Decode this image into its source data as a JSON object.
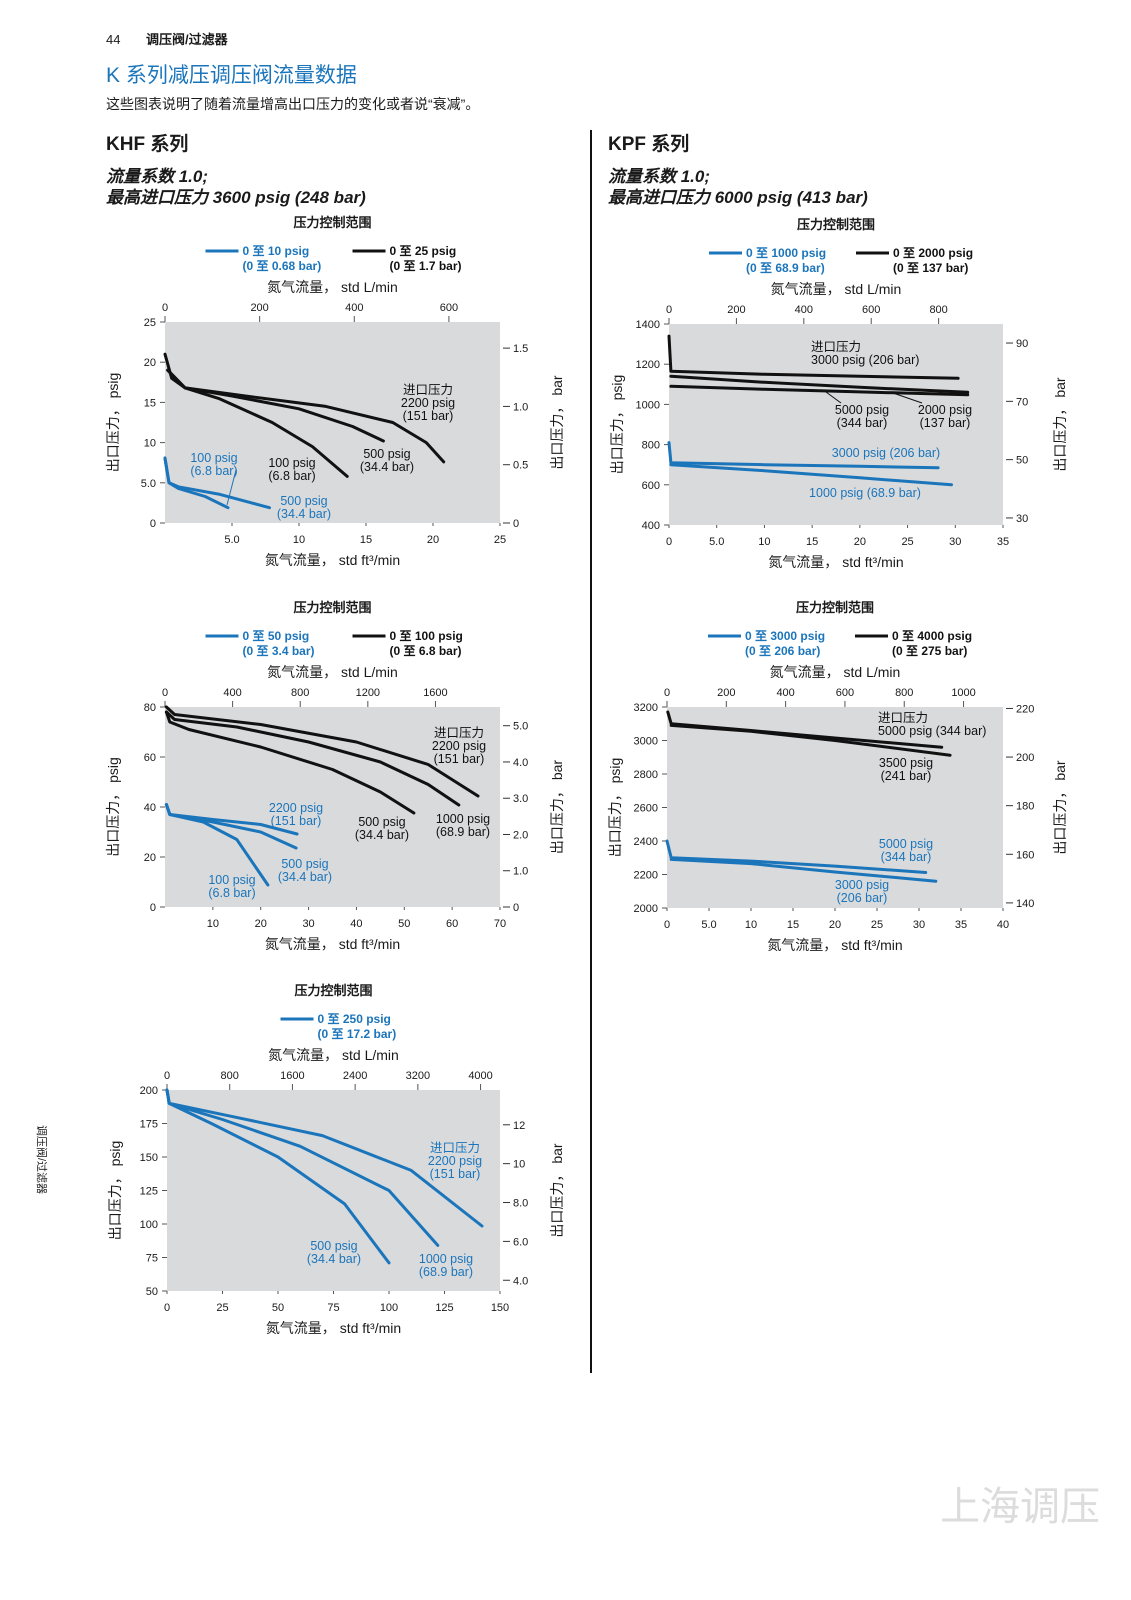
{
  "header": {
    "page": "44",
    "section": "调压阀/过滤器"
  },
  "title": "K 系列减压调压阀流量数据",
  "intro": "这些图表说明了随着流量增高出口压力的变化或者说“衰减”。",
  "side_tab": "调压阀/过滤器",
  "watermark": "上海调压",
  "columns": [
    {
      "heading": "KHF 系列",
      "spec": [
        "流量系数 1.0;",
        "最高进口压力 3600 psig (248 bar)"
      ]
    },
    {
      "heading": "KPF 系列",
      "spec": [
        "流量系数 1.0;",
        "最高进口压力 6000 psig (413 bar)"
      ]
    }
  ],
  "chart_data": [
    {
      "type": "line",
      "title": "压力控制范围",
      "legend": [
        {
          "name": "0 至 10 psig",
          "name_bar": "(0 至 0.68 bar)",
          "color": "#1b75bb"
        },
        {
          "name": "0 至 25 psig",
          "name_bar": "(0 至 1.7 bar)",
          "color": "#111111"
        }
      ],
      "x2label": "氮气流量， std L/min",
      "xlabel": "氮气流量， std ft³/min",
      "ylabel": "出口压力， psig",
      "y2label": "出口压力， bar",
      "xlim": [
        0,
        25
      ],
      "xticks": [
        {
          "value": 5,
          "label": "5.0"
        },
        10,
        15,
        20,
        25
      ],
      "x2lim": [
        0,
        708
      ],
      "x2ticks": [
        0,
        200,
        400,
        600
      ],
      "ylim": [
        0,
        25
      ],
      "yticks": [
        0,
        {
          "value": 5,
          "label": "5.0"
        },
        10,
        15,
        20,
        25
      ],
      "y2lim": [
        0,
        1.724
      ],
      "y2ticks": [
        0,
        0.5,
        {
          "value": 1,
          "label": "1.0"
        },
        1.5
      ],
      "series": [
        {
          "label": [
            "100 psig",
            "(6.8 bar)"
          ],
          "color": "#1b75bb",
          "x": [
            0,
            0.3,
            1,
            3,
            4.7
          ],
          "values": [
            8.1,
            5,
            4.3,
            3.3,
            1.9
          ]
        },
        {
          "label": [
            "500 psig",
            "(34.4 bar)"
          ],
          "color": "#1b75bb",
          "x": [
            0,
            0.3,
            1,
            4,
            7.8
          ],
          "values": [
            8,
            5,
            4.5,
            3.6,
            1.9
          ]
        },
        {
          "label": [
            "100 psig",
            "(6.8 bar)"
          ],
          "color": "#111111",
          "x": [
            0,
            0.5,
            1.5,
            4,
            8,
            11,
            13.6
          ],
          "values": [
            21,
            18,
            16.8,
            15.5,
            12.5,
            9.5,
            5.8
          ]
        },
        {
          "label": [
            "500 psig",
            "(34.4 bar)"
          ],
          "color": "#111111",
          "x": [
            0.2,
            1.5,
            5,
            10,
            14,
            16.3
          ],
          "values": [
            19,
            16.8,
            15.8,
            14.2,
            12,
            10.2
          ]
        },
        {
          "label": [
            "进口压力",
            "2200 psig",
            "(151 bar)"
          ],
          "color": "#111111",
          "x": [
            0.2,
            1.5,
            6,
            12,
            17,
            19.5,
            20.8
          ],
          "values": [
            19,
            16.8,
            15.8,
            14.5,
            12.5,
            10,
            7.6
          ]
        }
      ]
    },
    {
      "type": "line",
      "title": "压力控制范围",
      "legend": [
        {
          "name": "0 至 50 psig",
          "name_bar": "(0 至 3.4 bar)",
          "color": "#1b75bb"
        },
        {
          "name": "0 至 100 psig",
          "name_bar": "(0 至 6.8 bar)",
          "color": "#111111"
        }
      ],
      "x2label": "氮气流量， std L/min",
      "xlabel": "氮气流量， std ft³/min",
      "ylabel": "出口压力， psig",
      "y2label": "出口压力， bar",
      "xlim": [
        0,
        70
      ],
      "xticks": [
        10,
        20,
        30,
        40,
        50,
        60,
        70
      ],
      "x2lim": [
        0,
        1982
      ],
      "x2ticks": [
        0,
        400,
        800,
        1200,
        1600
      ],
      "ylim": [
        0,
        80
      ],
      "yticks": [
        0,
        20,
        40,
        60,
        80
      ],
      "y2lim": [
        0,
        5.516
      ],
      "y2ticks": [
        0,
        {
          "value": 1,
          "label": "1.0"
        },
        {
          "value": 2,
          "label": "2.0"
        },
        {
          "value": 3,
          "label": "3.0"
        },
        {
          "value": 4,
          "label": "4.0"
        },
        {
          "value": 5,
          "label": "5.0"
        }
      ],
      "series": [
        {
          "label": [
            "2200 psig",
            "(151 bar)"
          ],
          "color": "#1b75bb",
          "x": [
            0.3,
            1,
            10,
            20,
            27.6
          ],
          "values": [
            41,
            37,
            35,
            33,
            29.2
          ]
        },
        {
          "label": [
            "500 psig",
            "(34.4 bar)"
          ],
          "color": "#1b75bb",
          "x": [
            0.3,
            1,
            10,
            20,
            27.4
          ],
          "values": [
            41,
            37,
            34,
            30,
            23.6
          ]
        },
        {
          "label": [
            "100 psig",
            "(6.8 bar)"
          ],
          "color": "#1b75bb",
          "x": [
            0.3,
            1,
            8,
            15,
            21.5
          ],
          "values": [
            41,
            37,
            34,
            27,
            8.8
          ]
        },
        {
          "label": [
            "500 psig",
            "(34.4 bar)"
          ],
          "color": "#111111",
          "x": [
            0.3,
            1,
            5,
            20,
            35,
            45,
            52
          ],
          "values": [
            78,
            74,
            71,
            64,
            55,
            46,
            37.6
          ]
        },
        {
          "label": [
            "1000 psig",
            "(68.9 bar)"
          ],
          "color": "#111111",
          "x": [
            0.3,
            2,
            15,
            30,
            45,
            55,
            61.4
          ],
          "values": [
            78,
            75,
            72,
            66,
            58,
            49,
            40.8
          ]
        },
        {
          "label": [
            "进口压力",
            "2200 psig",
            "(151 bar)"
          ],
          "color": "#111111",
          "x": [
            0.3,
            2,
            20,
            40,
            55,
            65.4
          ],
          "values": [
            80,
            77,
            73,
            66,
            57,
            44.4
          ]
        }
      ]
    },
    {
      "type": "line",
      "title": "压力控制范围",
      "legend": [
        {
          "name": "0 至 250 psig",
          "name_bar": "(0 至 17.2 bar)",
          "color": "#1b75bb"
        }
      ],
      "x2label": "氮气流量， std L/min",
      "xlabel": "氮气流量， std ft³/min",
      "ylabel": "出口压力， psig",
      "y2label": "出口压力， bar",
      "xlim": [
        0,
        150
      ],
      "xticks": [
        0,
        25,
        50,
        75,
        100,
        125,
        150
      ],
      "x2lim": [
        0,
        4248
      ],
      "x2ticks": [
        0,
        800,
        1600,
        2400,
        3200,
        4000
      ],
      "ylim": [
        50,
        200
      ],
      "yticks": [
        50,
        75,
        100,
        125,
        150,
        175,
        200
      ],
      "y2lim": [
        3.447,
        13.79
      ],
      "y2ticks": [
        {
          "value": 4,
          "label": "4.0"
        },
        {
          "value": 6,
          "label": "6.0"
        },
        {
          "value": 8,
          "label": "8.0"
        },
        10,
        12
      ],
      "series": [
        {
          "label": [
            "500 psig",
            "(34.4 bar)"
          ],
          "color": "#1b75bb",
          "x": [
            0,
            1,
            20,
            50,
            80,
            100
          ],
          "values": [
            200,
            190,
            175,
            150,
            115,
            71
          ]
        },
        {
          "label": [
            "1000 psig",
            "(68.9 bar)"
          ],
          "color": "#1b75bb",
          "x": [
            0,
            1,
            25,
            60,
            100,
            122
          ],
          "values": [
            200,
            190,
            178,
            158,
            125,
            84
          ]
        },
        {
          "label": [
            "进口压力",
            "2200 psig",
            "(151 bar)"
          ],
          "color": "#1b75bb",
          "x": [
            0,
            1,
            30,
            70,
            110,
            141.9
          ],
          "values": [
            200,
            190,
            180,
            166,
            140,
            98.5
          ]
        }
      ]
    },
    {
      "type": "line",
      "title": "压力控制范围",
      "legend": [
        {
          "name": "0 至 1000 psig",
          "name_bar": "(0 至 68.9 bar)",
          "color": "#1b75bb"
        },
        {
          "name": "0 至 2000 psig",
          "name_bar": "(0 至 137 bar)",
          "color": "#111111"
        }
      ],
      "x2label": "氮气流量， std L/min",
      "xlabel": "氮气流量， std ft³/min",
      "ylabel": "出口压力， psig",
      "y2label": "出口压力， bar",
      "xlim": [
        0,
        35
      ],
      "xticks": [
        0,
        {
          "value": 5,
          "label": "5.0"
        },
        10,
        15,
        20,
        25,
        30,
        35
      ],
      "x2lim": [
        0,
        991
      ],
      "x2ticks": [
        0,
        200,
        400,
        600,
        800
      ],
      "ylim": [
        400,
        1400
      ],
      "yticks": [
        400,
        600,
        800,
        1000,
        1200,
        1400
      ],
      "y2lim": [
        27.58,
        96.53
      ],
      "y2ticks": [
        30,
        50,
        70,
        90
      ],
      "series": [
        {
          "label": [
            "3000 psig (206 bar)"
          ],
          "color": "#1b75bb",
          "x": [
            0,
            0.2,
            10,
            20,
            28.2
          ],
          "values": [
            810,
            710,
            700,
            692,
            685
          ]
        },
        {
          "label": [
            "1000 psig (68.9 bar)"
          ],
          "color": "#1b75bb",
          "x": [
            0.2,
            10,
            20,
            29.6
          ],
          "values": [
            700,
            670,
            635,
            600
          ]
        },
        {
          "label": [
            "进口压力",
            "3000 psig (206 bar)"
          ],
          "color": "#111111",
          "x": [
            0,
            0.2,
            10,
            20,
            30.3
          ],
          "values": [
            1340,
            1165,
            1150,
            1140,
            1130
          ]
        },
        {
          "label": [
            "5000 psig",
            "(344 bar)"
          ],
          "color": "#111111",
          "x": [
            0.2,
            10,
            20,
            31.3
          ],
          "values": [
            1140,
            1110,
            1085,
            1060
          ]
        },
        {
          "label": [
            "2000 psig",
            "(137 bar)"
          ],
          "color": "#111111",
          "x": [
            0.2,
            10,
            20,
            31.3
          ],
          "values": [
            1090,
            1075,
            1062,
            1048
          ]
        }
      ]
    },
    {
      "type": "line",
      "title": "压力控制范围",
      "legend": [
        {
          "name": "0 至 3000 psig",
          "name_bar": "(0 至 206 bar)",
          "color": "#1b75bb"
        },
        {
          "name": "0 至 4000 psig",
          "name_bar": "(0 至 275 bar)",
          "color": "#111111"
        }
      ],
      "x2label": "氮气流量， std L/min",
      "xlabel": "氮气流量， std ft³/min",
      "ylabel": "出口压力， psig",
      "y2label": "出口压力， bar",
      "xlim": [
        0,
        40
      ],
      "xticks": [
        0,
        {
          "value": 5,
          "label": "5.0"
        },
        10,
        15,
        20,
        25,
        30,
        35,
        40
      ],
      "x2lim": [
        0,
        1133
      ],
      "x2ticks": [
        0,
        200,
        400,
        600,
        800,
        1000
      ],
      "ylim": [
        2000,
        3200
      ],
      "yticks": [
        2000,
        2200,
        2400,
        2600,
        2800,
        3000,
        3200
      ],
      "y2lim": [
        137.9,
        220.6
      ],
      "y2ticks": [
        140,
        160,
        180,
        200,
        220
      ],
      "series": [
        {
          "label": [
            "5000 psig",
            "(344 bar)"
          ],
          "color": "#1b75bb",
          "x": [
            0,
            0.5,
            10,
            20,
            30.8
          ],
          "values": [
            2400,
            2300,
            2280,
            2250,
            2212
          ]
        },
        {
          "label": [
            "3000 psig",
            "(206 bar)"
          ],
          "color": "#1b75bb",
          "x": [
            0.5,
            10,
            20,
            32
          ],
          "values": [
            2290,
            2265,
            2215,
            2160
          ]
        },
        {
          "label": [
            "进口压力",
            "5000 psig (344 bar)"
          ],
          "color": "#111111",
          "x": [
            0.1,
            0.5,
            10,
            20,
            32.7
          ],
          "values": [
            3170,
            3100,
            3060,
            3015,
            2960
          ]
        },
        {
          "label": [
            "3500 psig",
            "(241 bar)"
          ],
          "color": "#111111",
          "x": [
            0.5,
            10,
            20,
            33.7
          ],
          "values": [
            3090,
            3055,
            3000,
            2912
          ]
        }
      ]
    }
  ]
}
